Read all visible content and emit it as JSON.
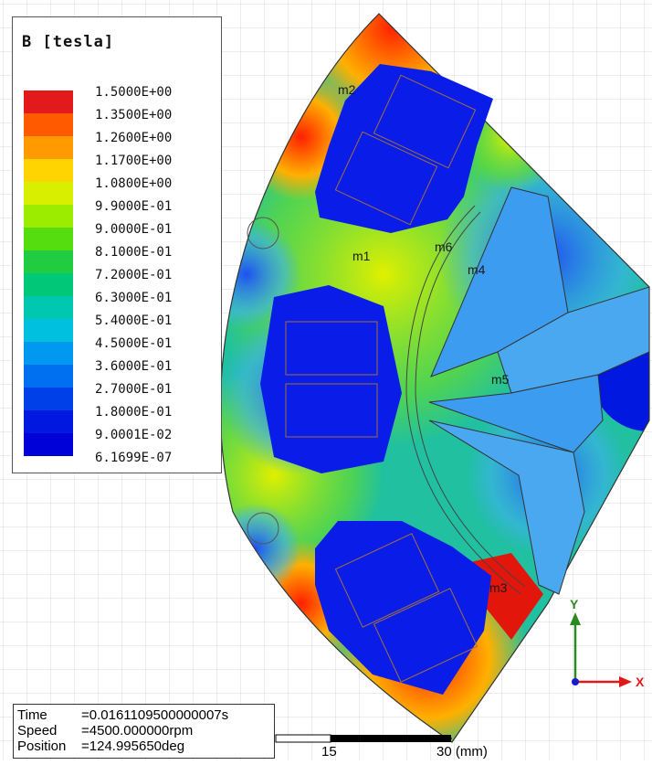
{
  "legend": {
    "title": "B [tesla]",
    "labels": [
      "1.5000E+00",
      "1.3500E+00",
      "1.2600E+00",
      "1.1700E+00",
      "1.0800E+00",
      "9.9000E-01",
      "9.0000E-01",
      "8.1000E-01",
      "7.2000E-01",
      "6.3000E-01",
      "5.4000E-01",
      "4.5000E-01",
      "3.6000E-01",
      "2.7000E-01",
      "1.8000E-01",
      "9.0001E-02",
      "6.1699E-07"
    ],
    "colors": [
      "#e31a1c",
      "#ff5a00",
      "#ff9a00",
      "#ffd400",
      "#d8f000",
      "#9cec00",
      "#55dd10",
      "#20cc40",
      "#00c878",
      "#00c8b0",
      "#00c0e0",
      "#0098f0",
      "#0070f0",
      "#0040e8",
      "#0018e0",
      "#0000d8"
    ]
  },
  "markers": {
    "m1": "m1",
    "m2": "m2",
    "m3": "m3",
    "m4": "m4",
    "m5": "m5",
    "m6": "m6"
  },
  "axes": {
    "x": "X",
    "y": "Y"
  },
  "status": {
    "time_label": "Time",
    "time_value": "=0.0161109500000007s",
    "speed_label": "Speed",
    "speed_value": "=4500.000000rpm",
    "position_label": "Position",
    "position_value": "=124.995650deg"
  },
  "scale": {
    "mid": "15",
    "end": "30 (mm)"
  }
}
